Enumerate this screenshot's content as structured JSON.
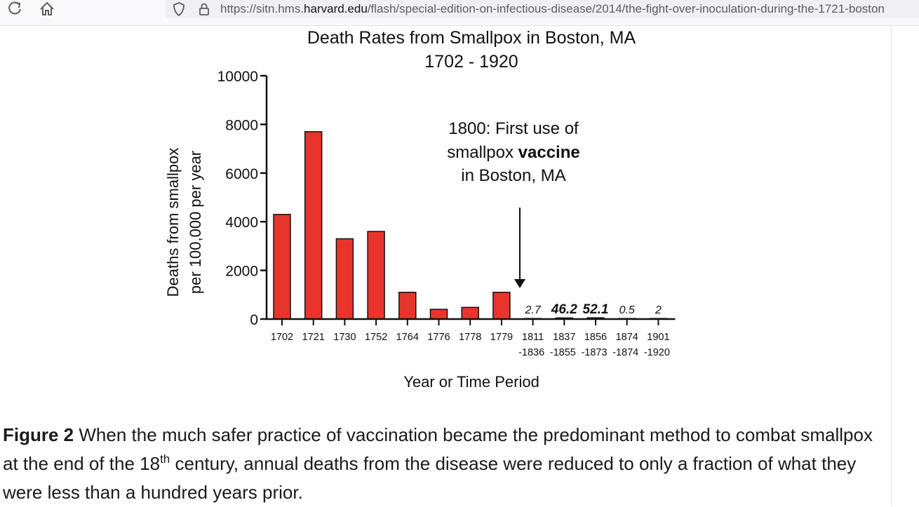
{
  "browser": {
    "url_prefix": "https://sitn.hms.",
    "url_domain": "harvard.edu",
    "url_path": "/flash/special-edition-on-infectious-disease/2014/the-fight-over-inoculation-during-the-1721-boston"
  },
  "chart_data": {
    "type": "bar",
    "title": "Death Rates from Smallpox in Boston, MA",
    "subtitle": "1702 - 1920",
    "ylabel_line1": "Deaths from smallpox",
    "ylabel_line2": "per 100,000 per year",
    "xlabel": "Year or Time Period",
    "ylim": [
      0,
      10000
    ],
    "yticks": [
      "0",
      "2000",
      "4000",
      "6000",
      "8000",
      "10000"
    ],
    "grid": false,
    "bar_color": "#e8352c",
    "categories": [
      [
        "1702",
        ""
      ],
      [
        "1721",
        ""
      ],
      [
        "1730",
        ""
      ],
      [
        "1752",
        ""
      ],
      [
        "1764",
        ""
      ],
      [
        "1776",
        ""
      ],
      [
        "1778",
        ""
      ],
      [
        "1779",
        ""
      ],
      [
        "1811",
        "-1836"
      ],
      [
        "1837",
        "-1855"
      ],
      [
        "1856",
        "-1873"
      ],
      [
        "1874",
        "-1874"
      ],
      [
        "1901",
        "-1920"
      ]
    ],
    "values": [
      4300,
      7700,
      3300,
      3600,
      1100,
      400,
      480,
      1100,
      2.7,
      46.2,
      52.1,
      0.5,
      2
    ],
    "data_labels": [
      {
        "index": 8,
        "text": "2.7",
        "bold": false
      },
      {
        "index": 9,
        "text": "46.2",
        "bold": true
      },
      {
        "index": 10,
        "text": "52.1",
        "bold": true
      },
      {
        "index": 11,
        "text": "0.5",
        "bold": false
      },
      {
        "index": 12,
        "text": "2",
        "bold": false
      }
    ],
    "annotation": {
      "line1": "1800:  First use of",
      "line2_pre": "smallpox ",
      "line2_bold": "vaccine",
      "line3": "in Boston, MA"
    }
  },
  "caption": {
    "label": "Figure 2",
    "text_1": " When the much safer practice of vaccination became the predominant method to combat smallpox at the end of the 18",
    "sup": "th",
    "text_2": " century, annual deaths from the disease were reduced to only a fraction of what they were less than a hundred years prior."
  }
}
